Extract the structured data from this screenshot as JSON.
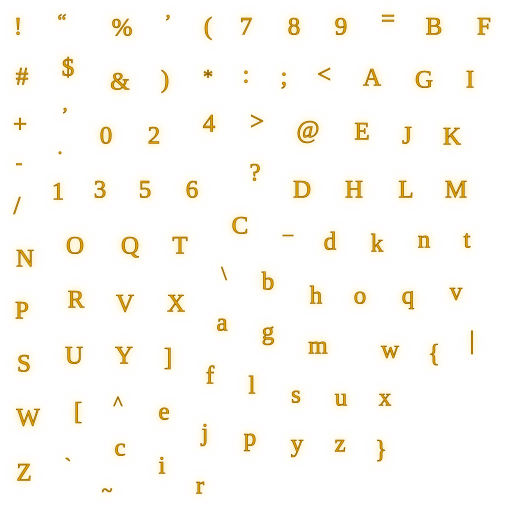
{
  "glyph_sheet": {
    "glyphs": [
      "!",
      "“",
      "%",
      "’",
      "(",
      "7",
      "8",
      "9",
      "=",
      "B",
      "F",
      "#",
      "$",
      "&",
      ")",
      "*",
      ":",
      ";",
      "<",
      "A",
      "G",
      "I",
      "+",
      "’",
      ".",
      "0",
      "2",
      "4",
      ">",
      "@",
      "E",
      "J",
      "K",
      "-",
      "/",
      "1",
      "3",
      "5",
      "6",
      "?",
      "D",
      "H",
      "L",
      "M",
      "C",
      "–",
      "N",
      "O",
      "Q",
      "T",
      "d",
      "k",
      "n",
      "t",
      "\\",
      "b",
      "P",
      "R",
      "V",
      "X",
      "h",
      "o",
      "q",
      "v",
      "a",
      "g",
      "S",
      "U",
      "Y",
      "]",
      "m",
      "w",
      "{",
      "|",
      "f",
      "l",
      "s",
      "u",
      "x",
      "W",
      "[",
      "^",
      "e",
      "j",
      "p",
      "y",
      "z",
      "}",
      "c",
      "Z",
      "`",
      "i",
      "~",
      "r"
    ],
    "glyph_color": "#e0a106",
    "outline_color": "#8a5a00",
    "glow_color": "#ffd65a",
    "background_color": "#ffffff"
  }
}
